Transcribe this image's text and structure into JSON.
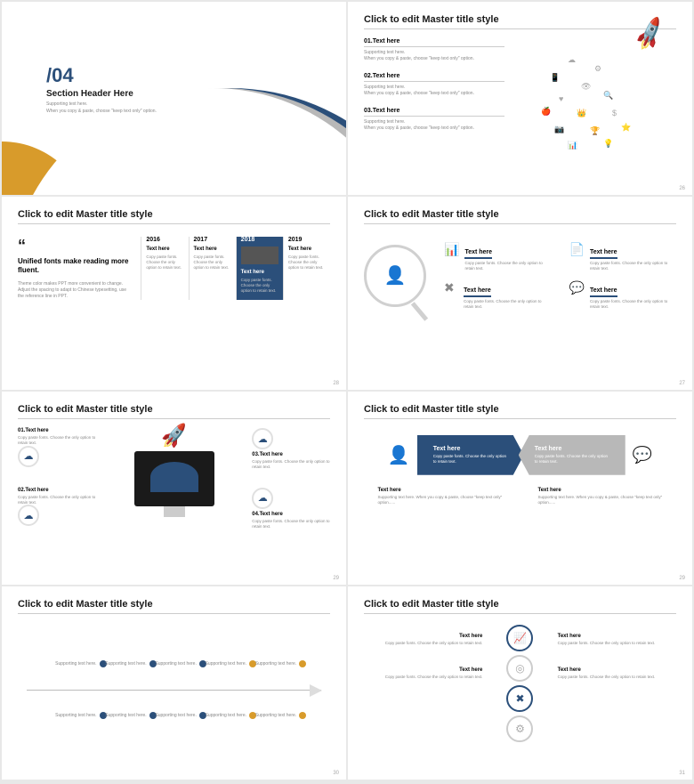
{
  "colors": {
    "primary": "#2b4f7a",
    "accent": "#d89b2b",
    "gray": "#b8b8b8",
    "text": "#1a1a1a",
    "muted": "#888"
  },
  "s1": {
    "num": "/04",
    "header": "Section Header Here",
    "sub1": "Supporting text here.",
    "sub2": "When you copy & paste, choose \"keep text only\" option."
  },
  "s2": {
    "title": "Click to edit Master title style",
    "items": [
      {
        "h": "01.Text here",
        "l1": "Supporting text here.",
        "l2": "When you copy & paste, choose \"keep text only\" option."
      },
      {
        "h": "02.Text here",
        "l1": "Supporting text here.",
        "l2": "When you copy & paste, choose \"keep text only\" option."
      },
      {
        "h": "03.Text here",
        "l1": "Supporting text here.",
        "l2": "When you copy & paste, choose \"keep text only\" option."
      }
    ],
    "page": "26"
  },
  "s3": {
    "title": "Click to edit Master title style",
    "headline": "Unified fonts make reading more fluent.",
    "desc": "Theme color makes PPT more convenient to change. Adjust the spacing to adapt to Chinese typesetting, use the reference line in PPT.",
    "years": [
      {
        "y": "2016",
        "h": "Text here",
        "p": "Copy paste fonts. Choose the only option to retain text."
      },
      {
        "y": "2017",
        "h": "Text here",
        "p": "Copy paste fonts. Choose the only option to retain text."
      },
      {
        "y": "2018",
        "h": "Text here",
        "p": "Copy paste fonts. Choose the only option to retain text.",
        "hl": true
      },
      {
        "y": "2019",
        "h": "Text here",
        "p": "Copy paste fonts. Choose the only option to retain text."
      }
    ],
    "page": "28"
  },
  "s4": {
    "title": "Click to edit Master title style",
    "items": [
      {
        "h": "Text here",
        "p": "Copy paste fonts. Choose the only option to retain text."
      },
      {
        "h": "Text here",
        "p": "Copy paste fonts. Choose the only option to retain text."
      },
      {
        "h": "Text here",
        "p": "Copy paste fonts. Choose the only option to retain text."
      },
      {
        "h": "Text here",
        "p": "Copy paste fonts. Choose the only option to retain text."
      }
    ],
    "icons": [
      "📊",
      "📄",
      "✖",
      "💬",
      "🖥"
    ],
    "page": "27"
  },
  "s5": {
    "title": "Click to edit Master title style",
    "items": [
      {
        "h": "01.Text here",
        "p": "Copy paste fonts. Choose the only option to retain text."
      },
      {
        "h": "02.Text here",
        "p": "Copy paste fonts. Choose the only option to retain text."
      },
      {
        "h": "03.Text here",
        "p": "Copy paste fonts. Choose the only option to retain text."
      },
      {
        "h": "04.Text here",
        "p": "Copy paste fonts. Choose the only option to retain text."
      }
    ],
    "page": "29"
  },
  "s6": {
    "title": "Click to edit Master title style",
    "left": {
      "h": "Text here",
      "p": "Copy paste fonts. Choose the only option to retain text."
    },
    "right": {
      "h": "Text here",
      "p": "Copy paste fonts. Choose the only option to retain text."
    },
    "below": [
      {
        "h": "Text here",
        "p": "Supporting text here. When you copy & paste, choose \"keep text only\" option......"
      },
      {
        "h": "Text here",
        "p": "Supporting text here. When you copy & paste, choose \"keep text only\" option......"
      }
    ],
    "page": "29"
  },
  "s7": {
    "title": "Click to edit Master title style",
    "label": "Supporting text here.",
    "points_top": [
      {
        "x": 12,
        "c": "b"
      },
      {
        "x": 28,
        "c": "b"
      },
      {
        "x": 44,
        "c": "b"
      },
      {
        "x": 60,
        "c": "o"
      },
      {
        "x": 76,
        "c": "o"
      }
    ],
    "points_bot": [
      {
        "x": 12,
        "c": "b"
      },
      {
        "x": 28,
        "c": "b"
      },
      {
        "x": 44,
        "c": "b"
      },
      {
        "x": 60,
        "c": "o"
      },
      {
        "x": 76,
        "c": "o"
      }
    ],
    "page": "30"
  },
  "s8": {
    "title": "Click to edit Master title style",
    "left": [
      {
        "h": "Text here",
        "p": "Copy paste fonts. Choose the only option to retain text."
      },
      {
        "h": "Text here",
        "p": "Copy paste fonts. Choose the only option to retain text."
      }
    ],
    "right": [
      {
        "h": "Text here",
        "p": "Copy paste fonts. Choose the only option to retain text."
      },
      {
        "h": "Text here",
        "p": "Copy paste fonts. Choose the only option to retain text."
      }
    ],
    "icons": [
      "📈",
      "◎",
      "✖",
      "⚙"
    ],
    "page": "31"
  }
}
